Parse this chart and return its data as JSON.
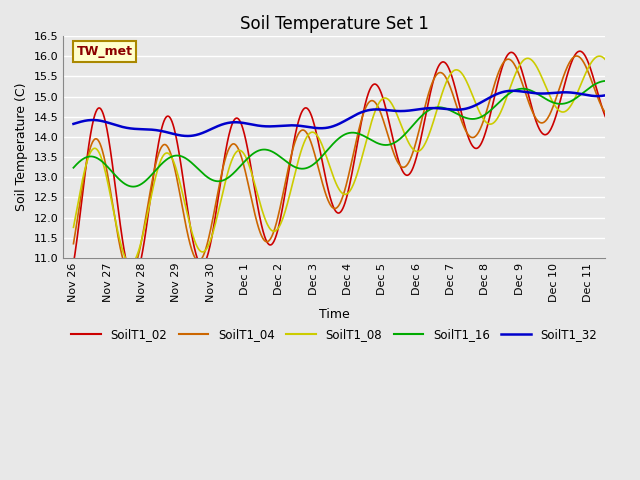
{
  "title": "Soil Temperature Set 1",
  "xlabel": "Time",
  "ylabel": "Soil Temperature (C)",
  "ylim": [
    11.0,
    16.5
  ],
  "bg_color": "#e8e8e8",
  "series_colors": {
    "SoilT1_02": "#cc0000",
    "SoilT1_04": "#cc6600",
    "SoilT1_08": "#cccc00",
    "SoilT1_16": "#00aa00",
    "SoilT1_32": "#0000cc"
  },
  "annotation_label": "TW_met",
  "tick_labels": [
    "Nov 26",
    "Nov 27",
    "Nov 28",
    "Nov 29",
    "Nov 30",
    "Dec 1",
    "Dec 2",
    "Dec 3",
    "Dec 4",
    "Dec 5",
    "Dec 6",
    "Dec 7",
    "Dec 8",
    "Dec 9",
    "Dec 10",
    "Dec 11"
  ],
  "yticks": [
    11.0,
    11.5,
    12.0,
    12.5,
    13.0,
    13.5,
    14.0,
    14.5,
    15.0,
    15.5,
    16.0,
    16.5
  ]
}
